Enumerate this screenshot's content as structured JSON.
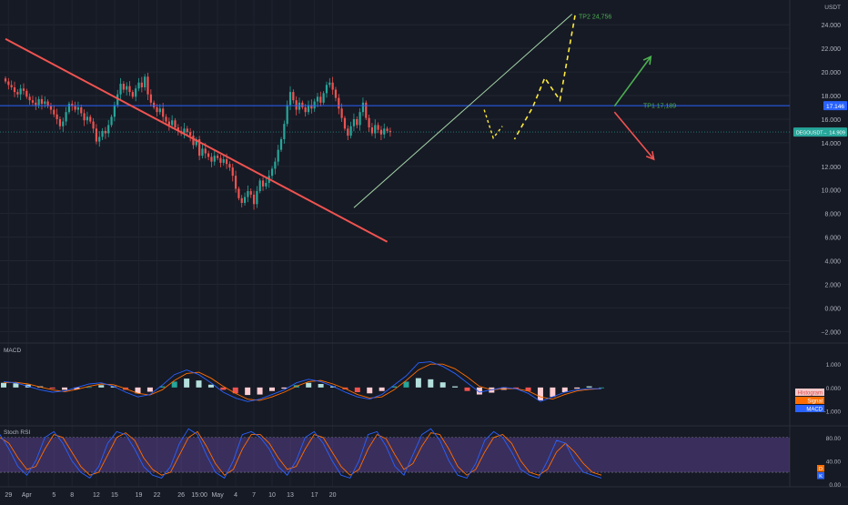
{
  "chart_data": {
    "type": "candlestick",
    "symbol_tag": "DEGOUSDT",
    "currency": "USDT",
    "last_price": "14.909",
    "last_price_value": 14.909,
    "y_ticks": [
      "24.000",
      "22.000",
      "20.000",
      "18.000",
      "16.000",
      "14.000",
      "12.000",
      "10.000",
      "8.000",
      "6.000",
      "4.000",
      "2.000",
      "0.000",
      "−2.000"
    ],
    "ylim": [
      -2.9,
      26.1
    ],
    "grid": true,
    "x_ticks": [
      {
        "label": "29",
        "i": 1
      },
      {
        "label": "Apr",
        "i": 7
      },
      {
        "label": "5",
        "i": 16
      },
      {
        "label": "8",
        "i": 22
      },
      {
        "label": "12",
        "i": 30
      },
      {
        "label": "15",
        "i": 36
      },
      {
        "label": "19",
        "i": 44
      },
      {
        "label": "22",
        "i": 50
      },
      {
        "label": "26",
        "i": 58
      },
      {
        "label": "15:00",
        "i": 64
      },
      {
        "label": "May",
        "i": 70
      },
      {
        "label": "4",
        "i": 76
      },
      {
        "label": "7",
        "i": 82
      },
      {
        "label": "10",
        "i": 88
      },
      {
        "label": "13",
        "i": 94
      },
      {
        "label": "17",
        "i": 102
      },
      {
        "label": "20",
        "i": 108
      }
    ],
    "closes": [
      19.2,
      18.9,
      18.7,
      18.3,
      18.1,
      18.6,
      18.4,
      17.9,
      17.6,
      17.4,
      17.2,
      17.7,
      17.3,
      17.5,
      17.1,
      16.8,
      16.4,
      16.0,
      15.4,
      15.8,
      16.6,
      17.3,
      17.1,
      16.8,
      17.0,
      16.5,
      15.9,
      16.2,
      15.8,
      15.2,
      14.1,
      14.5,
      15.0,
      14.8,
      15.5,
      16.2,
      17.2,
      18.1,
      19.0,
      18.5,
      18.8,
      18.3,
      17.9,
      18.6,
      19.1,
      18.7,
      19.6,
      18.1,
      17.4,
      17.0,
      16.6,
      16.9,
      16.2,
      15.8,
      15.5,
      15.9,
      15.3,
      15.0,
      14.8,
      15.2,
      14.9,
      14.6,
      13.8,
      14.3,
      12.9,
      13.5,
      13.1,
      12.8,
      12.4,
      12.9,
      12.7,
      12.3,
      12.6,
      12.2,
      11.9,
      11.2,
      10.1,
      9.3,
      8.9,
      9.4,
      9.9,
      9.6,
      8.8,
      9.9,
      10.8,
      10.3,
      10.6,
      11.2,
      11.8,
      12.4,
      13.4,
      14.3,
      15.6,
      17.2,
      18.3,
      17.6,
      16.8,
      17.4,
      17.0,
      16.6,
      17.2,
      16.9,
      17.5,
      17.9,
      17.4,
      18.2,
      18.9,
      19.1,
      18.5,
      17.8,
      16.9,
      16.1,
      15.2,
      14.6,
      15.4,
      16.0,
      15.5,
      16.6,
      17.4,
      16.1,
      15.3,
      14.8,
      15.5,
      15.1,
      14.7,
      15.2,
      15.0,
      14.9
    ],
    "annotations": {
      "tp2_label": "TP2 24,756",
      "tp2_value": 24.756,
      "tp1_label": "TP1 17,189",
      "tp1_value": 17.189,
      "horizontal_line_value": 17.146,
      "horizontal_line_label": "17.146",
      "resistance_trendline": [
        {
          "i": 0,
          "v": 22.8
        },
        {
          "i": 126,
          "v": 5.6
        }
      ],
      "support_trendline": [
        {
          "i": 115,
          "v": 8.5
        },
        {
          "i": 187,
          "v": 24.9
        }
      ],
      "projection_path": [
        {
          "i": 188,
          "v": 24.8
        },
        {
          "i": 183,
          "v": 17.6
        },
        {
          "i": 178,
          "v": 19.5
        },
        {
          "i": 174,
          "v": 17.0
        },
        {
          "i": 168,
          "v": 14.3
        }
      ],
      "bullish_arrow": [
        {
          "i": 201,
          "v": 17.1
        },
        {
          "i": 213,
          "v": 21.3
        }
      ],
      "bearish_arrow": [
        {
          "i": 201,
          "v": 16.6
        },
        {
          "i": 214,
          "v": 12.6
        }
      ]
    },
    "macd": {
      "title": "MACD",
      "y_ticks": [
        "1.000",
        "0.000",
        "−1.000"
      ],
      "ylim": [
        -1.6,
        1.9
      ],
      "legend": [
        "Histogram",
        "Signal",
        "MACD"
      ],
      "histogram": [
        0.2,
        0.18,
        0.12,
        0.05,
        -0.05,
        -0.1,
        -0.08,
        0.02,
        0.1,
        0.05,
        -0.1,
        -0.25,
        -0.18,
        0.05,
        0.25,
        0.38,
        0.3,
        0.12,
        -0.1,
        -0.25,
        -0.32,
        -0.3,
        -0.15,
        -0.05,
        0.1,
        0.2,
        0.15,
        0.05,
        -0.08,
        -0.2,
        -0.25,
        -0.15,
        0.05,
        0.25,
        0.4,
        0.35,
        0.22,
        0.05,
        -0.15,
        -0.3,
        -0.22,
        -0.1,
        -0.05,
        -0.15,
        -0.55,
        -0.4,
        -0.2,
        -0.05,
        0.05,
        0.0
      ],
      "macd_line": [
        0.25,
        0.2,
        0.05,
        -0.1,
        -0.2,
        -0.15,
        0.0,
        0.15,
        0.2,
        0.05,
        -0.2,
        -0.4,
        -0.3,
        0.1,
        0.55,
        0.75,
        0.55,
        0.2,
        -0.2,
        -0.45,
        -0.6,
        -0.5,
        -0.3,
        -0.1,
        0.2,
        0.35,
        0.25,
        0.05,
        -0.2,
        -0.4,
        -0.5,
        -0.3,
        0.1,
        0.5,
        1.05,
        1.1,
        0.9,
        0.6,
        0.2,
        -0.2,
        -0.1,
        0.0,
        -0.05,
        -0.25,
        -0.6,
        -0.4,
        -0.2,
        -0.1,
        -0.05,
        -0.05
      ],
      "signal_line": [
        0.2,
        0.22,
        0.15,
        0.02,
        -0.1,
        -0.18,
        -0.08,
        0.05,
        0.15,
        0.12,
        -0.05,
        -0.25,
        -0.32,
        -0.1,
        0.3,
        0.6,
        0.65,
        0.4,
        0.05,
        -0.25,
        -0.5,
        -0.55,
        -0.4,
        -0.2,
        0.05,
        0.25,
        0.3,
        0.15,
        -0.05,
        -0.3,
        -0.45,
        -0.4,
        -0.1,
        0.3,
        0.75,
        1.0,
        1.0,
        0.8,
        0.45,
        0.05,
        -0.1,
        -0.05,
        -0.05,
        -0.15,
        -0.4,
        -0.5,
        -0.3,
        -0.15,
        -0.08,
        -0.05
      ]
    },
    "stoch_rsi": {
      "title": "Stoch RSI",
      "y_ticks": [
        "80.00",
        "40.00",
        "0.00"
      ],
      "ylim": [
        -5,
        100
      ],
      "band": [
        20,
        80
      ],
      "legend": [
        "D",
        "K"
      ],
      "k_line": [
        85,
        60,
        30,
        15,
        40,
        80,
        90,
        70,
        40,
        20,
        10,
        30,
        70,
        90,
        85,
        60,
        30,
        15,
        10,
        30,
        70,
        95,
        85,
        50,
        20,
        10,
        40,
        85,
        90,
        80,
        60,
        30,
        15,
        40,
        80,
        90,
        70,
        40,
        15,
        10,
        40,
        85,
        90,
        65,
        30,
        15,
        50,
        85,
        95,
        75,
        40,
        15,
        10,
        35,
        75,
        90,
        80,
        55,
        25,
        15,
        10,
        40,
        75,
        70,
        40,
        20,
        15,
        10
      ],
      "d_line": [
        80,
        70,
        45,
        25,
        30,
        60,
        85,
        80,
        55,
        30,
        15,
        20,
        50,
        80,
        88,
        75,
        45,
        25,
        15,
        20,
        50,
        80,
        90,
        65,
        35,
        15,
        25,
        60,
        85,
        85,
        70,
        45,
        25,
        30,
        60,
        85,
        80,
        55,
        30,
        15,
        25,
        60,
        85,
        78,
        50,
        25,
        35,
        65,
        88,
        85,
        60,
        30,
        15,
        25,
        55,
        80,
        85,
        70,
        40,
        20,
        15,
        25,
        55,
        70,
        55,
        35,
        20,
        15
      ]
    }
  }
}
